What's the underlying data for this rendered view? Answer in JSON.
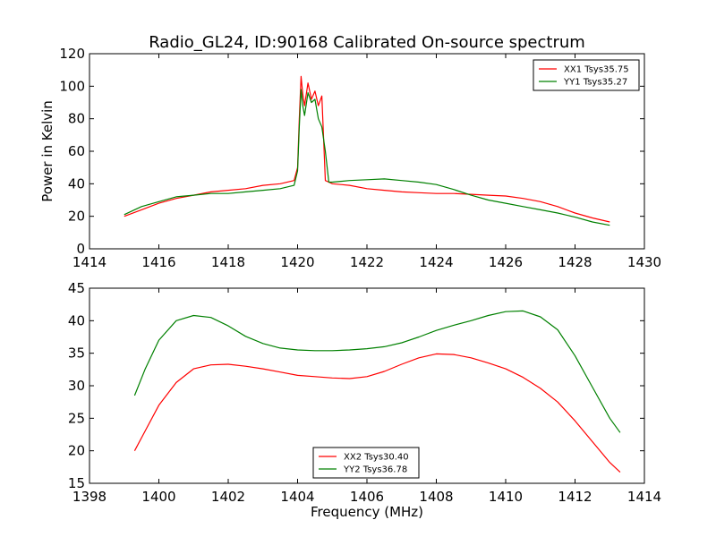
{
  "chart_data": [
    {
      "type": "line",
      "title": "Radio_GL24, ID:90168 Calibrated On-source spectrum",
      "xlabel": "",
      "ylabel": "Power in Kelvin",
      "xlim": [
        1414,
        1430
      ],
      "ylim": [
        0,
        120
      ],
      "xticks": [
        1414,
        1416,
        1418,
        1420,
        1422,
        1424,
        1426,
        1428,
        1430
      ],
      "yticks": [
        0,
        20,
        40,
        60,
        80,
        100,
        120
      ],
      "grid": false,
      "legend_position": "top-right",
      "series": [
        {
          "name": "XX1 Tsys35.75",
          "color": "#ff0000",
          "x": [
            1415.0,
            1415.5,
            1416.0,
            1416.5,
            1417.0,
            1417.5,
            1418.0,
            1418.5,
            1419.0,
            1419.5,
            1419.9,
            1420.0,
            1420.05,
            1420.1,
            1420.15,
            1420.2,
            1420.3,
            1420.4,
            1420.5,
            1420.6,
            1420.7,
            1420.8,
            1420.9,
            1421.0,
            1421.5,
            1422.0,
            1422.5,
            1423.0,
            1423.5,
            1424.0,
            1424.5,
            1425.0,
            1425.5,
            1426.0,
            1426.5,
            1427.0,
            1427.5,
            1428.0,
            1428.5,
            1429.0
          ],
          "values": [
            20,
            24,
            28,
            31,
            33,
            35,
            36,
            37,
            39,
            40,
            42,
            50,
            80,
            106,
            95,
            88,
            102,
            92,
            97,
            88,
            94,
            42,
            41,
            40,
            39,
            37,
            36,
            35,
            34.5,
            34,
            34,
            33.5,
            33,
            32.5,
            31,
            29,
            26,
            22,
            19,
            16.5
          ]
        },
        {
          "name": "YY1 Tsys35.27",
          "color": "#008000",
          "x": [
            1415.0,
            1415.5,
            1416.0,
            1416.5,
            1417.0,
            1417.5,
            1418.0,
            1418.5,
            1419.0,
            1419.5,
            1419.9,
            1420.0,
            1420.05,
            1420.1,
            1420.15,
            1420.2,
            1420.3,
            1420.4,
            1420.5,
            1420.6,
            1420.7,
            1420.8,
            1420.9,
            1421.0,
            1421.5,
            1422.0,
            1422.5,
            1423.0,
            1423.5,
            1424.0,
            1424.5,
            1425.0,
            1425.5,
            1426.0,
            1426.5,
            1427.0,
            1427.5,
            1428.0,
            1428.5,
            1429.0
          ],
          "values": [
            21,
            26,
            29,
            32,
            33,
            34,
            34,
            35,
            36,
            37,
            39,
            48,
            75,
            98,
            88,
            82,
            96,
            90,
            92,
            80,
            75,
            60,
            41,
            41,
            42,
            42.5,
            43,
            42,
            41,
            39.5,
            36.5,
            33,
            30,
            28,
            26,
            24,
            22,
            19.5,
            16.5,
            14.5
          ]
        }
      ]
    },
    {
      "type": "line",
      "title": "",
      "xlabel": "Frequency (MHz)",
      "ylabel": "",
      "xlim": [
        1398,
        1414
      ],
      "ylim": [
        15,
        45
      ],
      "xticks": [
        1398,
        1400,
        1402,
        1404,
        1406,
        1408,
        1410,
        1412,
        1414
      ],
      "yticks": [
        15,
        20,
        25,
        30,
        35,
        40,
        45
      ],
      "grid": false,
      "legend_position": "bottom-center",
      "series": [
        {
          "name": "XX2 Tsys30.40",
          "color": "#ff0000",
          "x": [
            1399.3,
            1399.6,
            1400.0,
            1400.5,
            1401.0,
            1401.5,
            1402.0,
            1402.5,
            1403.0,
            1403.5,
            1404.0,
            1404.5,
            1405.0,
            1405.5,
            1406.0,
            1406.5,
            1407.0,
            1407.5,
            1408.0,
            1408.5,
            1409.0,
            1409.5,
            1410.0,
            1410.5,
            1411.0,
            1411.5,
            1412.0,
            1412.5,
            1413.0,
            1413.3
          ],
          "values": [
            20.0,
            23.0,
            27.0,
            30.5,
            32.6,
            33.2,
            33.3,
            33.0,
            32.6,
            32.1,
            31.6,
            31.4,
            31.2,
            31.1,
            31.4,
            32.2,
            33.3,
            34.3,
            34.9,
            34.8,
            34.3,
            33.5,
            32.6,
            31.3,
            29.6,
            27.5,
            24.6,
            21.4,
            18.2,
            16.7
          ]
        },
        {
          "name": "YY2 Tsys36.78",
          "color": "#008000",
          "x": [
            1399.3,
            1399.6,
            1400.0,
            1400.5,
            1401.0,
            1401.5,
            1402.0,
            1402.5,
            1403.0,
            1403.5,
            1404.0,
            1404.5,
            1405.0,
            1405.5,
            1406.0,
            1406.5,
            1407.0,
            1407.5,
            1408.0,
            1408.5,
            1409.0,
            1409.5,
            1410.0,
            1410.5,
            1411.0,
            1411.5,
            1412.0,
            1412.5,
            1413.0,
            1413.3
          ],
          "values": [
            28.5,
            32.5,
            37.0,
            40.0,
            40.8,
            40.5,
            39.2,
            37.6,
            36.5,
            35.8,
            35.5,
            35.4,
            35.4,
            35.5,
            35.7,
            36.0,
            36.6,
            37.5,
            38.5,
            39.3,
            40.0,
            40.8,
            41.4,
            41.5,
            40.6,
            38.6,
            34.6,
            29.8,
            25.0,
            22.8
          ]
        }
      ]
    }
  ]
}
